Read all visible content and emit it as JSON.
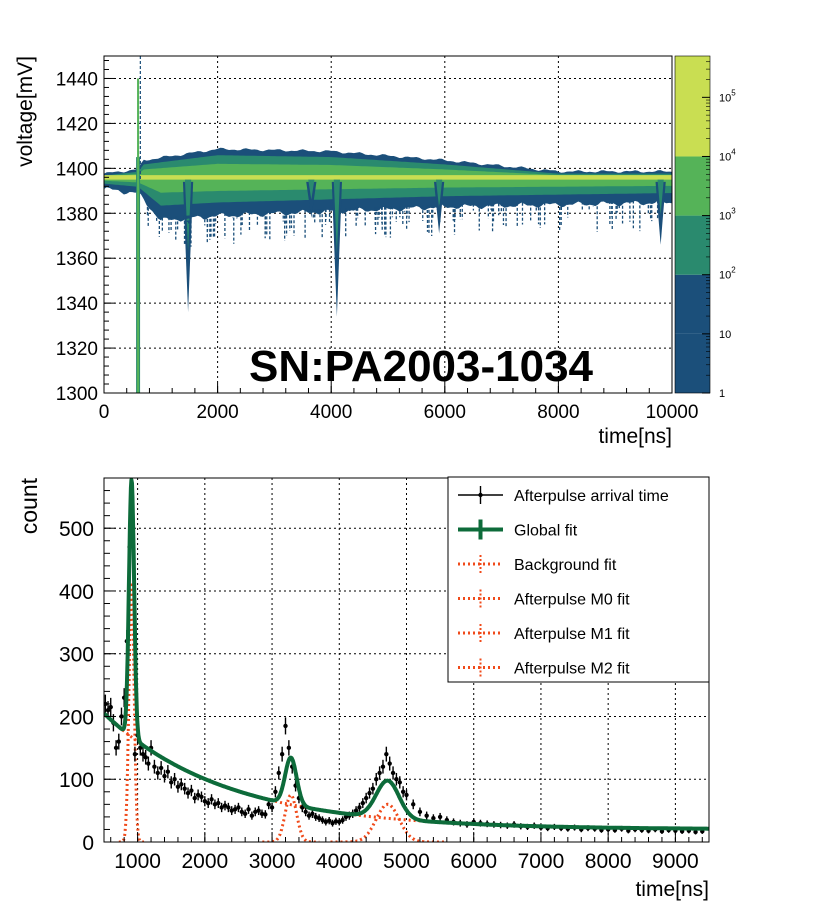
{
  "chart_data": [
    {
      "type": "heatmap",
      "title": "",
      "annotation": "SN:PA2003-1034",
      "xlabel": "time[ns]",
      "ylabel": "voltage[mV]",
      "xlim": [
        0,
        10000
      ],
      "ylim": [
        1300,
        1450
      ],
      "x_ticks": [
        0,
        2000,
        4000,
        6000,
        8000,
        10000
      ],
      "y_ticks": [
        1300,
        1320,
        1340,
        1360,
        1380,
        1400,
        1420,
        1440
      ],
      "x_tick_labels": [
        "0",
        "2000",
        "4000",
        "6000",
        "8000",
        "10000"
      ],
      "y_tick_labels": [
        "1300",
        "1320",
        "1340",
        "1360",
        "1380",
        "1400",
        "1420",
        "1440"
      ],
      "grid": true,
      "colorbar": {
        "scale": "log",
        "range": [
          1,
          500000
        ],
        "tick_labels": [
          {
            "base": "1",
            "exp": "",
            "value": 1
          },
          {
            "base": "10",
            "exp": "",
            "value": 10
          },
          {
            "base": "10",
            "exp": "2",
            "value": 100
          },
          {
            "base": "10",
            "exp": "3",
            "value": 1000
          },
          {
            "base": "10",
            "exp": "4",
            "value": 10000
          },
          {
            "base": "10",
            "exp": "5",
            "value": 100000
          }
        ],
        "colors": [
          "#1b4f7a",
          "#2a8a6e",
          "#55b358",
          "#c9de52"
        ]
      },
      "baseline_mV": 1396,
      "trigger_time_ns": 600,
      "band_upper_envelope": [
        [
          0,
          1397
        ],
        [
          600,
          1399
        ],
        [
          700,
          1403
        ],
        [
          2000,
          1408
        ],
        [
          4000,
          1407
        ],
        [
          6000,
          1403
        ],
        [
          8000,
          1398
        ],
        [
          10000,
          1398
        ]
      ],
      "band_lower_envelope": [
        [
          0,
          1392
        ],
        [
          600,
          1390
        ],
        [
          1000,
          1378
        ],
        [
          2000,
          1380
        ],
        [
          4000,
          1382
        ],
        [
          6000,
          1384
        ],
        [
          8000,
          1385
        ],
        [
          10000,
          1386
        ]
      ],
      "afterpulse_dips": [
        {
          "time": 1480,
          "min_mV": 1336
        },
        {
          "time": 3650,
          "min_mV": 1378
        },
        {
          "time": 4100,
          "min_mV": 1334
        },
        {
          "time": 5900,
          "min_mV": 1371
        },
        {
          "time": 9800,
          "min_mV": 1366
        }
      ]
    },
    {
      "type": "line",
      "title": "",
      "xlabel": "time[ns]",
      "ylabel": "count",
      "xlim": [
        500,
        9500
      ],
      "ylim": [
        0,
        580
      ],
      "x_ticks": [
        1000,
        2000,
        3000,
        4000,
        5000,
        6000,
        7000,
        8000,
        9000
      ],
      "y_ticks": [
        0,
        100,
        200,
        300,
        400,
        500
      ],
      "x_tick_labels": [
        "1000",
        "2000",
        "3000",
        "4000",
        "5000",
        "6000",
        "7000",
        "8000",
        "9000"
      ],
      "y_tick_labels": [
        "0",
        "100",
        "200",
        "300",
        "400",
        "500"
      ],
      "grid": true,
      "legend": {
        "placement": "top-right",
        "entries": [
          {
            "label": "Afterpulse arrival time",
            "color": "#000000",
            "style": "errorbar"
          },
          {
            "label": "Global fit",
            "color": "#0d6b3a",
            "style": "thick"
          },
          {
            "label": "Background fit",
            "color": "#f04a1a",
            "style": "dotted"
          },
          {
            "label": "Afterpulse M0 fit",
            "color": "#f04a1a",
            "style": "dotted"
          },
          {
            "label": "Afterpulse M1 fit",
            "color": "#f04a1a",
            "style": "dotted"
          },
          {
            "label": "Afterpulse M2 fit",
            "color": "#f04a1a",
            "style": "dotted"
          }
        ]
      },
      "model": {
        "background": {
          "amplitude": 185,
          "tau_ns": 1800,
          "offset": 20,
          "t0": 500
        },
        "peaks": [
          {
            "name": "M0",
            "mean": 910,
            "sigma": 38,
            "amplitude": 410
          },
          {
            "name": "M1",
            "mean": 3280,
            "sigma": 85,
            "amplitude": 75
          },
          {
            "name": "M2",
            "mean": 4720,
            "sigma": 170,
            "amplitude": 60
          }
        ]
      },
      "series": [
        {
          "name": "Afterpulse arrival time",
          "x": [
            520,
            560,
            600,
            640,
            680,
            720,
            760,
            800,
            840,
            880,
            920,
            960,
            1000,
            1040,
            1080,
            1120,
            1160,
            1200,
            1250,
            1300,
            1350,
            1400,
            1450,
            1500,
            1550,
            1600,
            1650,
            1700,
            1750,
            1800,
            1850,
            1900,
            1950,
            2000,
            2050,
            2100,
            2150,
            2200,
            2250,
            2300,
            2350,
            2400,
            2450,
            2500,
            2550,
            2600,
            2650,
            2700,
            2750,
            2800,
            2850,
            2900,
            2950,
            3000,
            3050,
            3100,
            3150,
            3200,
            3250,
            3300,
            3350,
            3400,
            3450,
            3500,
            3550,
            3600,
            3650,
            3700,
            3750,
            3800,
            3850,
            3900,
            3950,
            4000,
            4050,
            4100,
            4150,
            4200,
            4250,
            4300,
            4350,
            4400,
            4450,
            4500,
            4550,
            4600,
            4650,
            4700,
            4750,
            4800,
            4850,
            4900,
            4950,
            5000,
            5100,
            5200,
            5300,
            5400,
            5500,
            5600,
            5700,
            5800,
            5900,
            6000,
            6100,
            6200,
            6300,
            6400,
            6500,
            6600,
            6700,
            6800,
            6900,
            7000,
            7100,
            7200,
            7300,
            7400,
            7500,
            7600,
            7700,
            7800,
            7900,
            8000,
            8100,
            8200,
            8300,
            8400,
            8500,
            8600,
            8700,
            8800,
            8900,
            9000,
            9100,
            9200,
            9300,
            9400
          ],
          "y": [
            220,
            210,
            215,
            190,
            150,
            160,
            200,
            230,
            320,
            470,
            545,
            140,
            170,
            150,
            140,
            135,
            125,
            150,
            120,
            110,
            118,
            105,
            112,
            95,
            100,
            88,
            92,
            85,
            78,
            82,
            70,
            75,
            72,
            65,
            62,
            68,
            60,
            62,
            55,
            58,
            55,
            50,
            52,
            55,
            48,
            45,
            52,
            42,
            48,
            50,
            45,
            44,
            60,
            55,
            80,
            110,
            140,
            185,
            150,
            120,
            90,
            70,
            55,
            48,
            42,
            45,
            40,
            38,
            35,
            32,
            34,
            30,
            33,
            32,
            35,
            40,
            42,
            45,
            50,
            55,
            62,
            70,
            78,
            85,
            100,
            110,
            120,
            140,
            125,
            110,
            100,
            95,
            80,
            75,
            60,
            48,
            42,
            38,
            40,
            35,
            32,
            30,
            28,
            32,
            30,
            29,
            28,
            27,
            26,
            28,
            25,
            24,
            26,
            23,
            22,
            24,
            22,
            21,
            23,
            20,
            22,
            21,
            19,
            20,
            19,
            21,
            18,
            20,
            19,
            18,
            20,
            17,
            19,
            18,
            17,
            18,
            16,
            17
          ]
        }
      ]
    }
  ]
}
